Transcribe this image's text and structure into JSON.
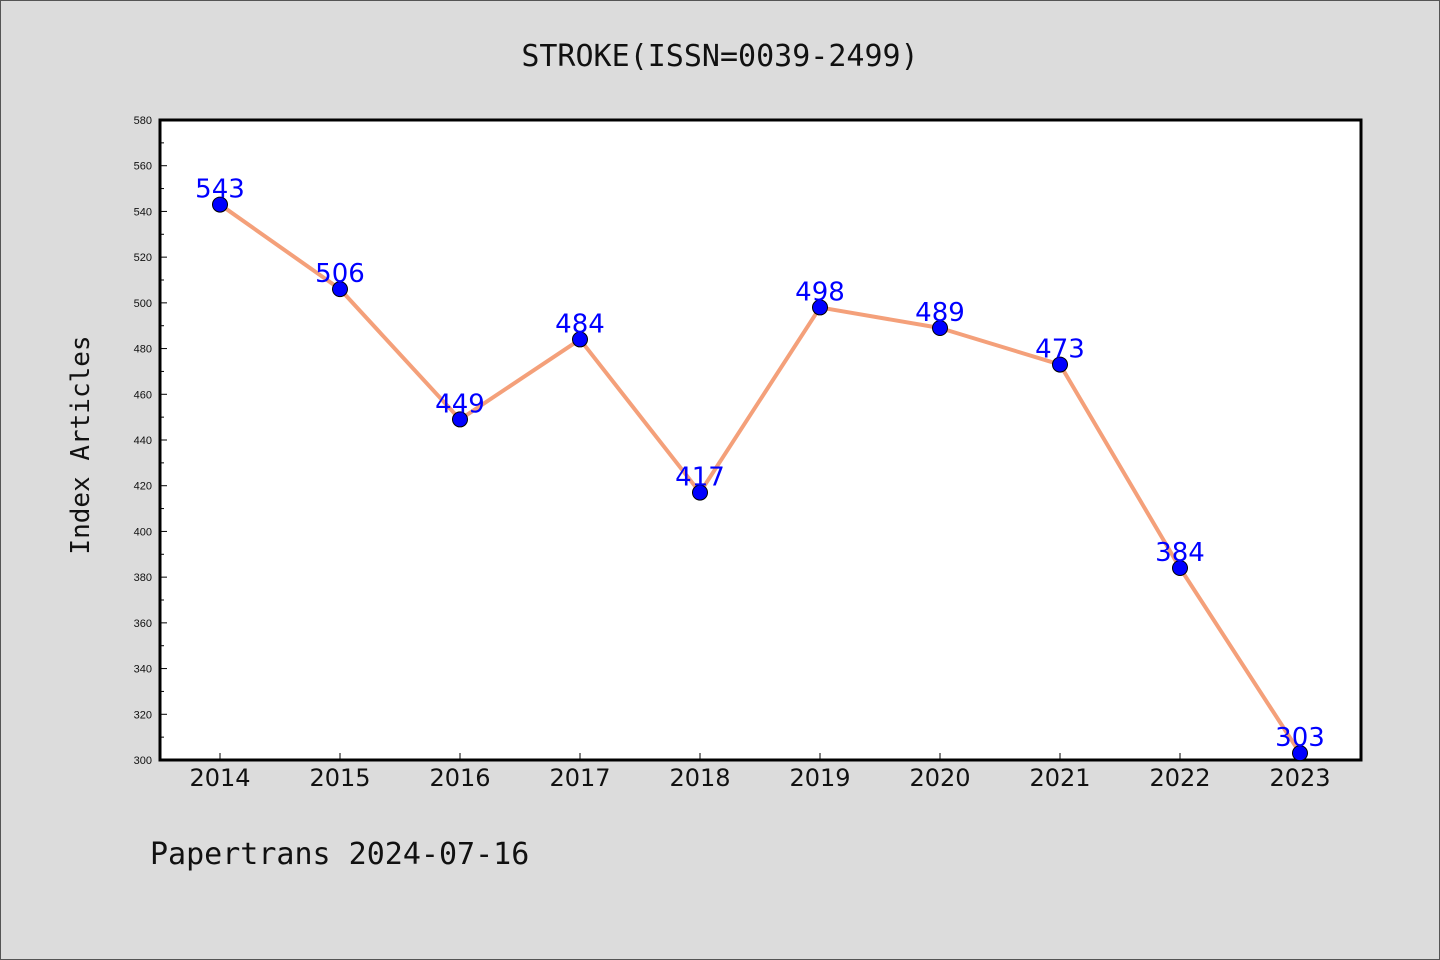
{
  "chart_data": {
    "type": "line",
    "title": "STROKE(ISSN=0039-2499)",
    "ylabel": "Index Articles",
    "xlabel": "",
    "categories": [
      "2014",
      "2015",
      "2016",
      "2017",
      "2018",
      "2019",
      "2020",
      "2021",
      "2022",
      "2023"
    ],
    "series": [
      {
        "values": [
          543,
          506,
          449,
          484,
          417,
          498,
          489,
          473,
          384,
          303
        ]
      }
    ],
    "ylim": [
      300,
      580
    ],
    "yticks": [
      300,
      320,
      340,
      360,
      380,
      400,
      420,
      440,
      460,
      480,
      500,
      520,
      540,
      560,
      580
    ],
    "line_color": "#f4a07a",
    "marker_color": "#0000ff",
    "label_color": "#0000ff",
    "grid": false
  },
  "footer": "Papertrans 2024-07-16"
}
